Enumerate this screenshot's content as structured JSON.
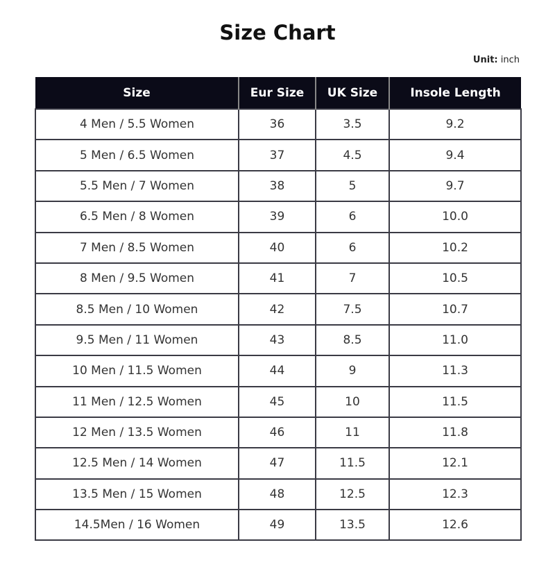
{
  "title": "Size Chart",
  "unit_label": "Unit:",
  "unit_value": "inch",
  "columns": [
    "Size",
    "Eur Size",
    "UK Size",
    "Insole Length"
  ],
  "rows": [
    [
      "4 Men / 5.5 Women",
      "36",
      "3.5",
      "9.2"
    ],
    [
      "5 Men / 6.5 Women",
      "37",
      "4.5",
      "9.4"
    ],
    [
      "5.5 Men / 7 Women",
      "38",
      "5",
      "9.7"
    ],
    [
      "6.5 Men / 8 Women",
      "39",
      "6",
      "10.0"
    ],
    [
      "7 Men / 8.5 Women",
      "40",
      "6",
      "10.2"
    ],
    [
      "8 Men / 9.5 Women",
      "41",
      "7",
      "10.5"
    ],
    [
      "8.5 Men / 10 Women",
      "42",
      "7.5",
      "10.7"
    ],
    [
      "9.5 Men / 11 Women",
      "43",
      "8.5",
      "11.0"
    ],
    [
      "10 Men / 11.5 Women",
      "44",
      "9",
      "11.3"
    ],
    [
      "11 Men / 12.5 Women",
      "45",
      "10",
      "11.5"
    ],
    [
      "12 Men / 13.5 Women",
      "46",
      "11",
      "11.8"
    ],
    [
      "12.5 Men / 14 Women",
      "47",
      "11.5",
      "12.1"
    ],
    [
      "13.5 Men / 15 Women",
      "48",
      "12.5",
      "12.3"
    ],
    [
      "14.5Men / 16 Women",
      "49",
      "13.5",
      "12.6"
    ]
  ],
  "colors": {
    "header_bg": "#0b0b18",
    "header_text": "#ffffff",
    "border": "#3a3a44"
  }
}
